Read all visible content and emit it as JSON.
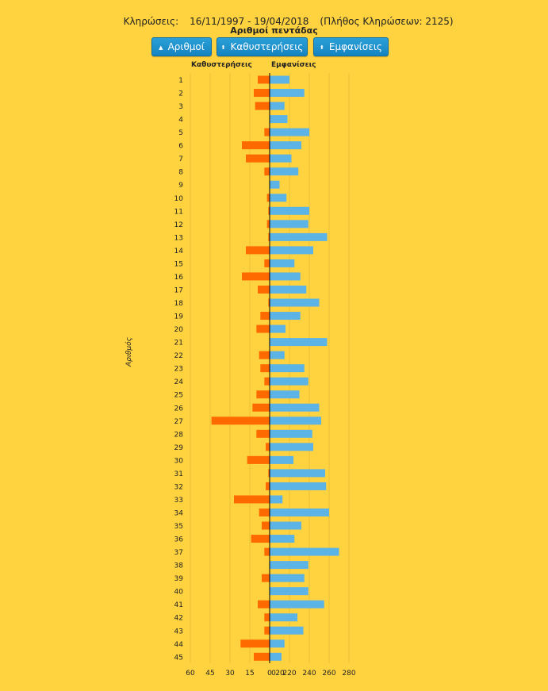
{
  "header": {
    "label": "Κληρώσεις:",
    "date_range": "16/11/1997 - 19/04/2018",
    "draw_count": "(Πλήθος Κληρώσεων: 2125)"
  },
  "subtitle": "Αριθμοί πεντάδας",
  "buttons": [
    {
      "label": "Αριθμοί",
      "icon": "triangle-up-icon",
      "glyph": "▲"
    },
    {
      "label": "Καθυστερήσεις",
      "icon": "sort-icon",
      "glyph": "⬍"
    },
    {
      "label": "Εμφανίσεις",
      "icon": "sort-icon",
      "glyph": "⬍"
    }
  ],
  "colors": {
    "background": "#FFD23F",
    "delay": "#FF6A00",
    "appearance": "#5CB3E6",
    "grid": "#E8C13A",
    "axis": "#000000",
    "button": "#1E90CC"
  },
  "chart_data": {
    "type": "bar",
    "orientation": "horizontal-diverging",
    "ylabel": "Αριθμός",
    "categories": [
      "1",
      "2",
      "3",
      "4",
      "5",
      "6",
      "7",
      "8",
      "9",
      "10",
      "11",
      "12",
      "13",
      "14",
      "15",
      "16",
      "17",
      "18",
      "19",
      "20",
      "21",
      "22",
      "23",
      "24",
      "25",
      "26",
      "27",
      "28",
      "29",
      "30",
      "31",
      "32",
      "33",
      "34",
      "35",
      "36",
      "37",
      "38",
      "39",
      "40",
      "41",
      "42",
      "43",
      "44",
      "45"
    ],
    "left": {
      "label": "Καθυστερήσεις",
      "xlim": [
        0,
        60
      ],
      "ticks": [
        "60",
        "45",
        "30",
        "15",
        "0"
      ],
      "values": [
        9,
        12,
        11,
        0,
        4,
        21,
        18,
        4,
        0,
        2,
        1,
        2,
        1,
        18,
        4,
        21,
        9,
        1,
        7,
        10,
        0,
        8,
        7,
        4,
        10,
        13,
        44,
        10,
        3,
        17,
        1,
        3,
        27,
        8,
        6,
        14,
        4,
        0,
        6,
        0,
        9,
        4,
        4,
        22,
        12
      ]
    },
    "right": {
      "label": "Εμφανίσεις",
      "xlim": [
        0,
        280
      ],
      "ticks": [
        "0",
        "20",
        "220",
        "240",
        "260",
        "280"
      ],
      "values": [
        220,
        235,
        215,
        218,
        240,
        232,
        222,
        229,
        210,
        217,
        240,
        239,
        258,
        244,
        225,
        231,
        237,
        250,
        231,
        216,
        258,
        215,
        235,
        239,
        230,
        250,
        252,
        243,
        244,
        224,
        256,
        257,
        213,
        260,
        232,
        225,
        270,
        239,
        235,
        239,
        255,
        228,
        234,
        215,
        212
      ]
    }
  }
}
